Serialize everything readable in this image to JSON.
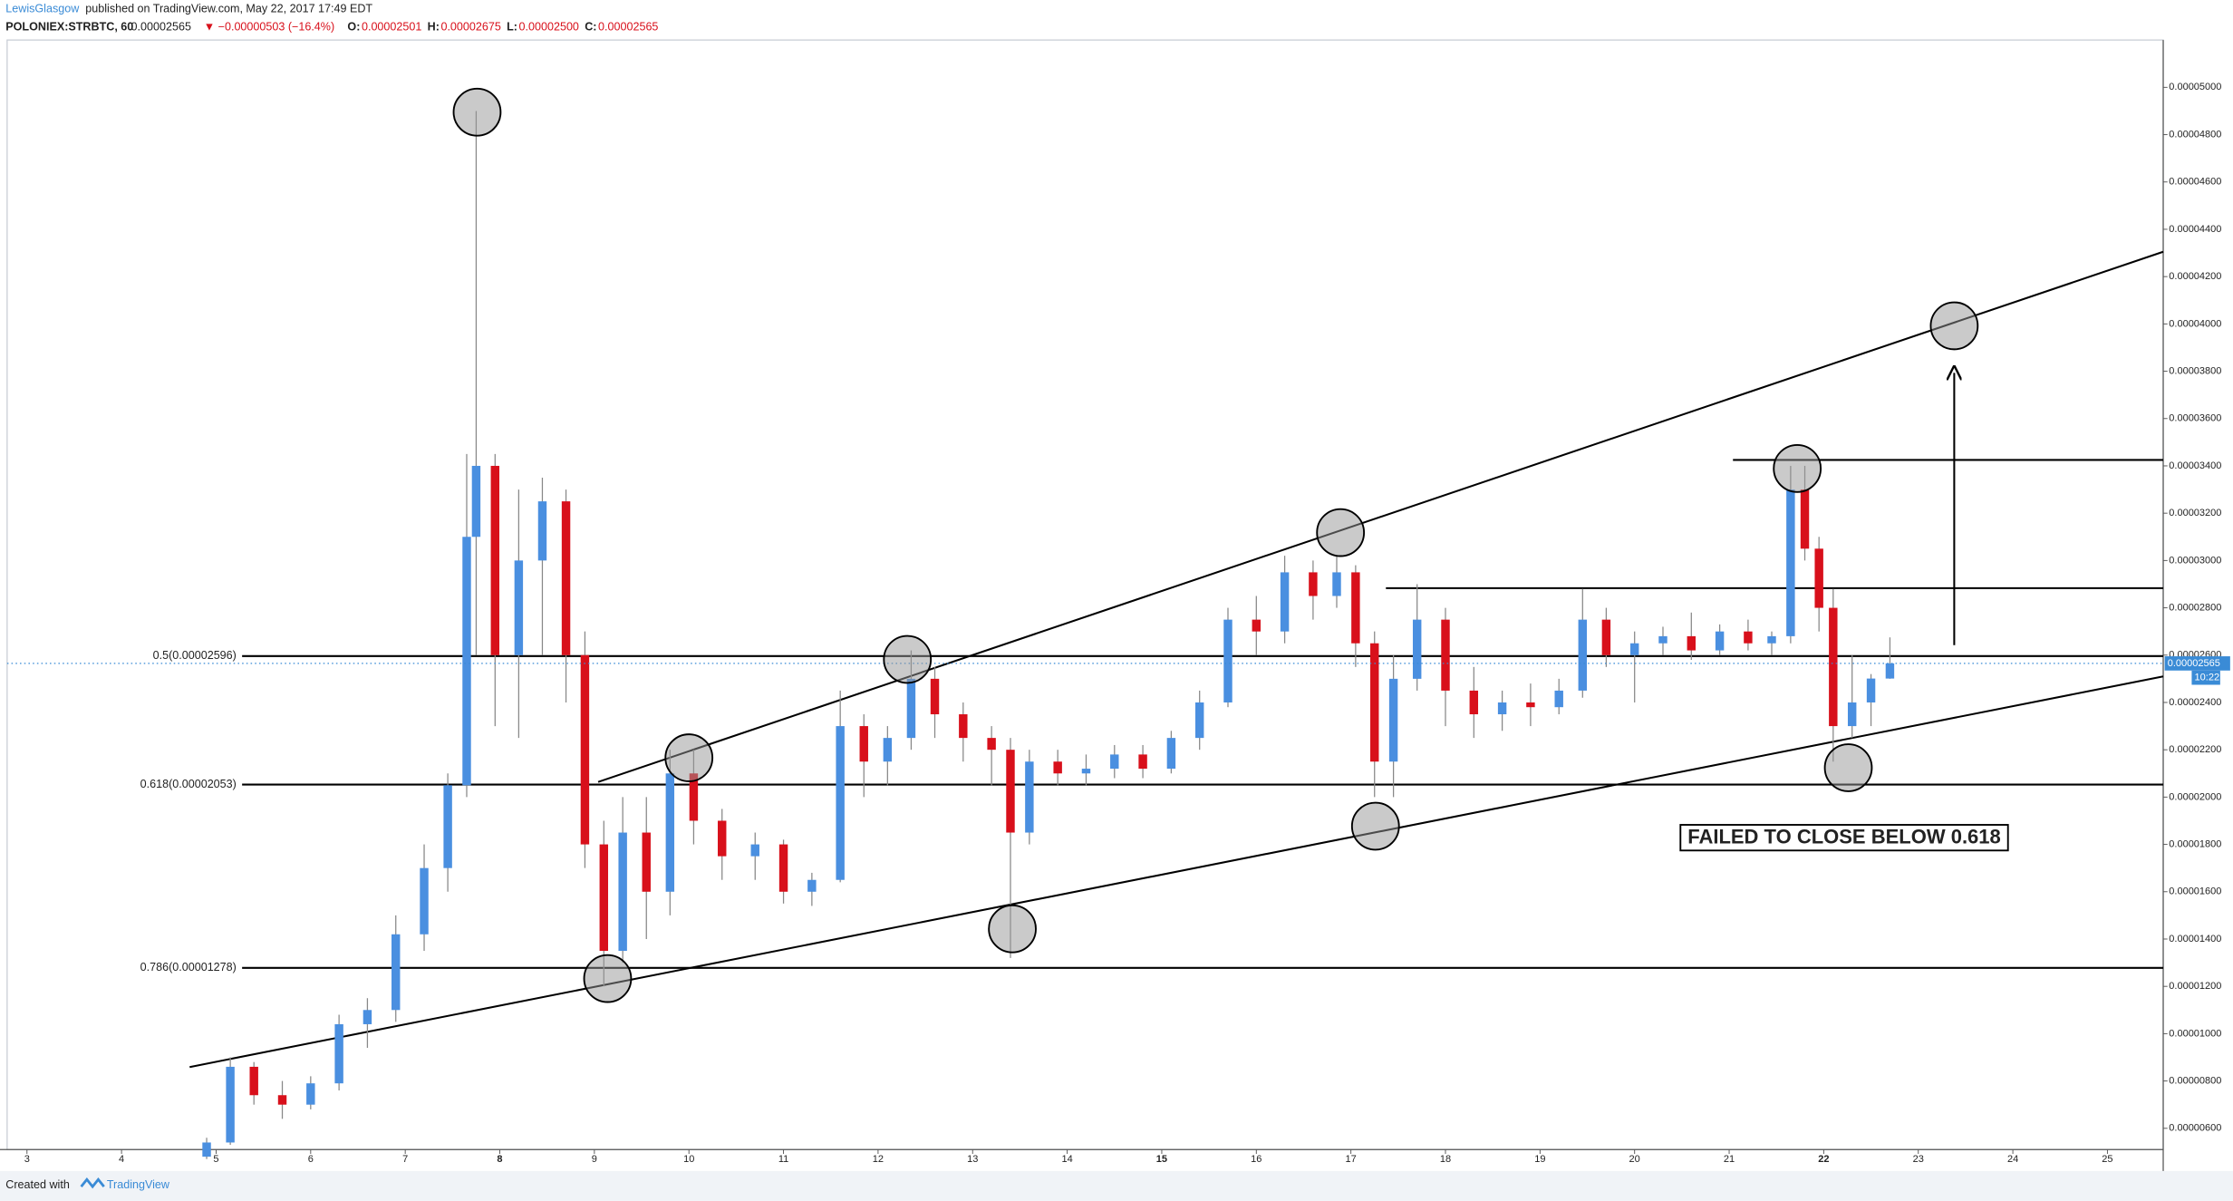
{
  "header": {
    "author": "LewisGlasgow",
    "published": "published on TradingView.com, May 22, 2017 17:49 EDT",
    "symbol": "POLONIEX:STRBTC, 60",
    "last": "0.00002565",
    "change": "▼ −0.00000503 (−16.4%)",
    "ohlc": [
      {
        "key": "O:",
        "value": "0.00002501"
      },
      {
        "key": "H:",
        "value": "0.00002675"
      },
      {
        "key": "L:",
        "value": "0.00002500"
      },
      {
        "key": "C:",
        "value": "0.00002565"
      }
    ]
  },
  "footer": {
    "created": "Created with",
    "brand": "TradingView"
  },
  "chart_data": {
    "type": "candlestick",
    "up_color": "#4a8fe0",
    "down_color": "#d8101b",
    "xlim": [
      2.79,
      25.59
    ],
    "ylim": [
      5.1e-06,
      5.2e-05
    ],
    "xticks": [
      3,
      4,
      5,
      6,
      7,
      8,
      9,
      10,
      11,
      12,
      13,
      14,
      15,
      16,
      17,
      18,
      19,
      20,
      21,
      22,
      23,
      24,
      25
    ],
    "bold_xticks": [
      8,
      15,
      22
    ],
    "yticks": [
      {
        "value": 6e-06,
        "label": "0.00000600"
      },
      {
        "value": 8e-06,
        "label": "0.00000800"
      },
      {
        "value": 1e-05,
        "label": "0.00001000"
      },
      {
        "value": 1.2e-05,
        "label": "0.00001200"
      },
      {
        "value": 1.4e-05,
        "label": "0.00001400"
      },
      {
        "value": 1.6e-05,
        "label": "0.00001600"
      },
      {
        "value": 1.8e-05,
        "label": "0.00001800"
      },
      {
        "value": 2e-05,
        "label": "0.00002000"
      },
      {
        "value": 2.2e-05,
        "label": "0.00002200"
      },
      {
        "value": 2.4e-05,
        "label": "0.00002400"
      },
      {
        "value": 2.6e-05,
        "label": "0.00002600"
      },
      {
        "value": 2.8e-05,
        "label": "0.00002800"
      },
      {
        "value": 3e-05,
        "label": "0.00003000"
      },
      {
        "value": 3.2e-05,
        "label": "0.00003200"
      },
      {
        "value": 3.4e-05,
        "label": "0.00003400"
      },
      {
        "value": 3.6e-05,
        "label": "0.00003600"
      },
      {
        "value": 3.8e-05,
        "label": "0.00003800"
      },
      {
        "value": 4e-05,
        "label": "0.00004000"
      },
      {
        "value": 4.2e-05,
        "label": "0.00004200"
      },
      {
        "value": 4.4e-05,
        "label": "0.00004400"
      },
      {
        "value": 4.6e-05,
        "label": "0.00004600"
      },
      {
        "value": 4.8e-05,
        "label": "0.00004800"
      },
      {
        "value": 5e-05,
        "label": "0.00005000"
      }
    ],
    "x": [
      4.9,
      5.15,
      5.4,
      5.7,
      6.0,
      6.3,
      6.6,
      6.9,
      7.2,
      7.45,
      7.65,
      7.75,
      7.95,
      8.2,
      8.45,
      8.7,
      8.9,
      9.1,
      9.3,
      9.55,
      9.8,
      10.05,
      10.35,
      10.7,
      11.0,
      11.3,
      11.6,
      11.85,
      12.1,
      12.35,
      12.6,
      12.9,
      13.2,
      13.4,
      13.6,
      13.9,
      14.2,
      14.5,
      14.8,
      15.1,
      15.4,
      15.7,
      16.0,
      16.3,
      16.6,
      16.85,
      17.05,
      17.25,
      17.45,
      17.7,
      18.0,
      18.3,
      18.6,
      18.9,
      19.2,
      19.45,
      19.7,
      20.0,
      20.3,
      20.6,
      20.9,
      21.2,
      21.45,
      21.65,
      21.8,
      21.95,
      22.1,
      22.3,
      22.5,
      22.7
    ],
    "open": [
      4.8e-06,
      5.4e-06,
      8.6e-06,
      7.4e-06,
      7e-06,
      7.9e-06,
      1.04e-05,
      1.1e-05,
      1.42e-05,
      1.7e-05,
      2.05e-05,
      3.1e-05,
      3.4e-05,
      2.6e-05,
      3e-05,
      3.25e-05,
      2.6e-05,
      1.8e-05,
      1.35e-05,
      1.85e-05,
      1.6e-05,
      2.1e-05,
      1.9e-05,
      1.75e-05,
      1.8e-05,
      1.6e-05,
      1.65e-05,
      2.3e-05,
      2.15e-05,
      2.25e-05,
      2.5e-05,
      2.35e-05,
      2.25e-05,
      2.2e-05,
      1.85e-05,
      2.15e-05,
      2.1e-05,
      2.12e-05,
      2.18e-05,
      2.12e-05,
      2.25e-05,
      2.4e-05,
      2.75e-05,
      2.7e-05,
      2.95e-05,
      2.85e-05,
      2.95e-05,
      2.65e-05,
      2.15e-05,
      2.5e-05,
      2.75e-05,
      2.45e-05,
      2.35e-05,
      2.4e-05,
      2.38e-05,
      2.45e-05,
      2.75e-05,
      2.6e-05,
      2.65e-05,
      2.68e-05,
      2.62e-05,
      2.7e-05,
      2.65e-05,
      2.68e-05,
      3.3e-05,
      3.05e-05,
      2.8e-05,
      2.3e-05,
      2.4e-05,
      2.501e-05
    ],
    "high": [
      5.6e-06,
      9e-06,
      8.8e-06,
      8e-06,
      8.2e-06,
      1.08e-05,
      1.15e-05,
      1.5e-05,
      1.8e-05,
      2.1e-05,
      3.45e-05,
      4.9e-05,
      3.45e-05,
      3.3e-05,
      3.35e-05,
      3.3e-05,
      2.7e-05,
      1.9e-05,
      2e-05,
      2e-05,
      2.2e-05,
      2.2e-05,
      1.95e-05,
      1.85e-05,
      1.82e-05,
      1.68e-05,
      2.45e-05,
      2.35e-05,
      2.3e-05,
      2.62e-05,
      2.55e-05,
      2.4e-05,
      2.3e-05,
      2.25e-05,
      2.2e-05,
      2.2e-05,
      2.18e-05,
      2.22e-05,
      2.22e-05,
      2.28e-05,
      2.45e-05,
      2.8e-05,
      2.85e-05,
      3.02e-05,
      3e-05,
      3.02e-05,
      2.98e-05,
      2.7e-05,
      2.6e-05,
      2.9e-05,
      2.8e-05,
      2.55e-05,
      2.45e-05,
      2.48e-05,
      2.5e-05,
      2.88e-05,
      2.8e-05,
      2.7e-05,
      2.72e-05,
      2.78e-05,
      2.73e-05,
      2.75e-05,
      2.7e-05,
      3.4e-05,
      3.4e-05,
      3.1e-05,
      2.88e-05,
      2.6e-05,
      2.52e-05,
      2.675e-05
    ],
    "low": [
      4.7e-06,
      5.3e-06,
      7e-06,
      6.4e-06,
      6.8e-06,
      7.6e-06,
      9.4e-06,
      1.05e-05,
      1.35e-05,
      1.6e-05,
      2e-05,
      2.6e-05,
      2.3e-05,
      2.25e-05,
      2.6e-05,
      2.4e-05,
      1.7e-05,
      1.2e-05,
      1.3e-05,
      1.4e-05,
      1.5e-05,
      1.8e-05,
      1.65e-05,
      1.65e-05,
      1.55e-05,
      1.54e-05,
      1.64e-05,
      2e-05,
      2.05e-05,
      2.2e-05,
      2.25e-05,
      2.15e-05,
      2.05e-05,
      1.32e-05,
      1.8e-05,
      2.05e-05,
      2.05e-05,
      2.08e-05,
      2.08e-05,
      2.1e-05,
      2.2e-05,
      2.38e-05,
      2.6e-05,
      2.65e-05,
      2.75e-05,
      2.8e-05,
      2.55e-05,
      2e-05,
      2e-05,
      2.45e-05,
      2.3e-05,
      2.25e-05,
      2.28e-05,
      2.3e-05,
      2.35e-05,
      2.42e-05,
      2.55e-05,
      2.4e-05,
      2.6e-05,
      2.58e-05,
      2.6e-05,
      2.62e-05,
      2.6e-05,
      2.65e-05,
      3e-05,
      2.7e-05,
      2.15e-05,
      2.25e-05,
      2.3e-05,
      2.5e-05
    ],
    "close": [
      5.4e-06,
      8.6e-06,
      7.4e-06,
      7e-06,
      7.9e-06,
      1.04e-05,
      1.1e-05,
      1.42e-05,
      1.7e-05,
      2.05e-05,
      3.1e-05,
      3.4e-05,
      2.6e-05,
      3e-05,
      3.25e-05,
      2.6e-05,
      1.8e-05,
      1.35e-05,
      1.85e-05,
      1.6e-05,
      2.1e-05,
      1.9e-05,
      1.75e-05,
      1.8e-05,
      1.6e-05,
      1.65e-05,
      2.3e-05,
      2.15e-05,
      2.25e-05,
      2.5e-05,
      2.35e-05,
      2.25e-05,
      2.2e-05,
      1.85e-05,
      2.15e-05,
      2.1e-05,
      2.12e-05,
      2.18e-05,
      2.12e-05,
      2.25e-05,
      2.4e-05,
      2.75e-05,
      2.7e-05,
      2.95e-05,
      2.85e-05,
      2.95e-05,
      2.65e-05,
      2.15e-05,
      2.5e-05,
      2.75e-05,
      2.45e-05,
      2.35e-05,
      2.4e-05,
      2.38e-05,
      2.45e-05,
      2.75e-05,
      2.6e-05,
      2.65e-05,
      2.68e-05,
      2.62e-05,
      2.7e-05,
      2.65e-05,
      2.68e-05,
      3.3e-05,
      3.05e-05,
      2.8e-05,
      2.3e-05,
      2.4e-05,
      2.501e-05,
      2.565e-05
    ],
    "price_label": "0.00002565",
    "countdown": "10:22",
    "fib_levels": [
      {
        "value": 2.596e-05,
        "label": "0.5(0.00002596)"
      },
      {
        "value": 2.053e-05,
        "label": "0.618(0.00002053)"
      },
      {
        "value": 1.278e-05,
        "label": "0.786(0.00001278)"
      }
    ],
    "trendlines": [
      {
        "x": [
          9.04,
          25.59
        ],
        "y": [
          2.064e-05,
          4.305e-05
        ]
      },
      {
        "x": [
          4.72,
          25.59
        ],
        "y": [
          8.59e-06,
          2.51e-05
        ]
      },
      {
        "x": [
          21.04,
          25.59
        ],
        "y": [
          3.425e-05,
          3.425e-05
        ]
      },
      {
        "x": [
          17.37,
          25.59
        ],
        "y": [
          2.883e-05,
          2.883e-05
        ]
      }
    ],
    "arrow": {
      "x": [
        23.38,
        23.38
      ],
      "y": [
        2.642e-05,
        3.793e-05
      ]
    },
    "circles": {
      "x": [
        7.76,
        10.0,
        9.14,
        12.31,
        13.42,
        16.89,
        17.26,
        21.72,
        22.26,
        23.38
      ],
      "y": [
        4.895e-05,
        2.166e-05,
        1.233e-05,
        2.582e-05,
        1.443e-05,
        3.118e-05,
        1.877e-05,
        3.389e-05,
        2.124e-05,
        3.992e-05
      ]
    },
    "note": "FAILED TO CLOSE BELOW 0.618"
  }
}
